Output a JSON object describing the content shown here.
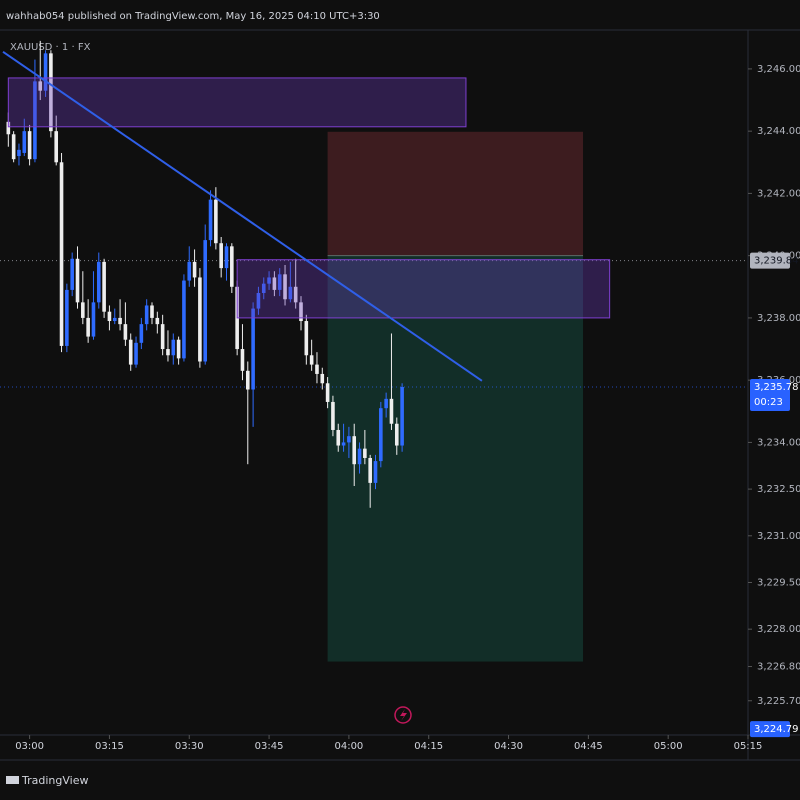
{
  "header": {
    "title": "wahhab054 published on TradingView.com, May 16, 2025 04:10 UTC+3:30",
    "symbol": "XAUUSD · 1 · FX"
  },
  "footer": {
    "brand": "TradingView"
  },
  "chart_data": {
    "type": "candlestick",
    "up_color": "#2f6bff",
    "down_color": "#eeeeee",
    "x": [
      "02:56",
      "02:57",
      "02:58",
      "02:59",
      "03:00",
      "03:01",
      "03:02",
      "03:03",
      "03:04",
      "03:05",
      "03:06",
      "03:07",
      "03:08",
      "03:09",
      "03:10",
      "03:11",
      "03:12",
      "03:13",
      "03:14",
      "03:15",
      "03:16",
      "03:17",
      "03:18",
      "03:19",
      "03:20",
      "03:21",
      "03:22",
      "03:23",
      "03:24",
      "03:25",
      "03:26",
      "03:27",
      "03:28",
      "03:29",
      "03:30",
      "03:31",
      "03:32",
      "03:33",
      "03:34",
      "03:35",
      "03:36",
      "03:37",
      "03:38",
      "03:39",
      "03:40",
      "03:41",
      "03:42",
      "03:43",
      "03:44",
      "03:45",
      "03:46",
      "03:47",
      "03:48",
      "03:49",
      "03:50",
      "03:51",
      "03:52",
      "03:53",
      "03:54",
      "03:55",
      "03:56",
      "03:57",
      "03:58",
      "03:59",
      "04:00",
      "04:01",
      "04:02",
      "04:03",
      "04:04",
      "04:05",
      "04:06",
      "04:07",
      "04:08",
      "04:09",
      "04:10"
    ],
    "open": [
      3244.3,
      3243.9,
      3243.2,
      3243.3,
      3244.0,
      3243.1,
      3245.6,
      3245.3,
      3246.5,
      3244.0,
      3243.0,
      3237.1,
      3238.9,
      3239.9,
      3238.5,
      3238.0,
      3237.4,
      3238.5,
      3239.8,
      3238.2,
      3237.9,
      3238.0,
      3237.8,
      3237.3,
      3236.5,
      3237.2,
      3237.8,
      3238.4,
      3238.0,
      3237.8,
      3237.0,
      3236.8,
      3237.3,
      3236.7,
      3239.2,
      3239.8,
      3239.3,
      3236.6,
      3240.5,
      3241.8,
      3240.4,
      3239.6,
      3240.3,
      3239.0,
      3237.0,
      3236.3,
      3235.7,
      3238.3,
      3238.8,
      3239.1,
      3239.3,
      3238.9,
      3239.4,
      3238.6,
      3239.0,
      3238.5,
      3237.9,
      3236.8,
      3236.5,
      3236.2,
      3235.9,
      3235.3,
      3234.4,
      3233.9,
      3234.0,
      3234.2,
      3233.3,
      3233.8,
      3233.5,
      3232.7,
      3233.4,
      3235.1,
      3235.4,
      3234.6,
      3233.9
    ],
    "high": [
      3244.6,
      3244.0,
      3243.6,
      3244.4,
      3244.2,
      3246.3,
      3246.9,
      3246.6,
      3246.6,
      3244.5,
      3243.3,
      3239.1,
      3240.1,
      3240.3,
      3239.5,
      3238.6,
      3239.5,
      3240.1,
      3239.9,
      3238.4,
      3238.3,
      3238.6,
      3238.5,
      3237.5,
      3237.4,
      3238.0,
      3238.6,
      3238.5,
      3238.2,
      3238.1,
      3237.6,
      3237.5,
      3237.4,
      3239.4,
      3240.3,
      3240.2,
      3239.6,
      3241.0,
      3242.1,
      3242.2,
      3240.6,
      3240.4,
      3240.4,
      3239.2,
      3237.8,
      3236.6,
      3238.5,
      3239.0,
      3239.3,
      3239.5,
      3239.5,
      3239.6,
      3239.7,
      3239.8,
      3239.9,
      3238.7,
      3238.1,
      3237.3,
      3236.9,
      3236.4,
      3236.1,
      3235.5,
      3234.6,
      3234.6,
      3234.5,
      3234.6,
      3234.0,
      3234.4,
      3233.6,
      3233.6,
      3235.3,
      3235.6,
      3237.5,
      3234.8,
      3235.9
    ],
    "low": [
      3243.5,
      3243.0,
      3242.9,
      3243.2,
      3242.9,
      3243.0,
      3245.0,
      3245.1,
      3243.8,
      3242.9,
      3236.9,
      3236.9,
      3238.7,
      3238.3,
      3237.8,
      3237.2,
      3237.3,
      3238.3,
      3238.0,
      3237.6,
      3237.8,
      3237.6,
      3237.1,
      3236.3,
      3236.4,
      3237.0,
      3237.6,
      3237.8,
      3237.5,
      3236.8,
      3236.6,
      3236.5,
      3236.5,
      3236.6,
      3239.0,
      3239.0,
      3236.4,
      3236.5,
      3240.3,
      3240.2,
      3239.3,
      3239.2,
      3238.8,
      3236.8,
      3236.0,
      3233.3,
      3234.5,
      3238.1,
      3238.6,
      3238.9,
      3238.7,
      3238.7,
      3238.4,
      3238.5,
      3238.3,
      3237.6,
      3236.5,
      3236.3,
      3235.9,
      3235.7,
      3235.1,
      3234.2,
      3233.7,
      3233.7,
      3233.5,
      3232.6,
      3233.0,
      3233.3,
      3231.9,
      3232.5,
      3233.2,
      3234.8,
      3234.4,
      3233.6,
      3233.7
    ],
    "close": [
      3243.9,
      3243.1,
      3243.4,
      3244.0,
      3243.1,
      3245.6,
      3245.3,
      3246.5,
      3244.0,
      3243.0,
      3237.1,
      3238.9,
      3239.9,
      3238.5,
      3238.0,
      3237.4,
      3238.5,
      3239.8,
      3238.2,
      3237.9,
      3238.0,
      3237.8,
      3237.3,
      3236.5,
      3237.2,
      3237.8,
      3238.4,
      3238.0,
      3237.8,
      3237.0,
      3236.8,
      3237.3,
      3236.7,
      3239.2,
      3239.8,
      3239.3,
      3236.6,
      3240.5,
      3241.8,
      3240.4,
      3239.6,
      3240.3,
      3239.0,
      3237.0,
      3236.3,
      3235.7,
      3238.3,
      3238.8,
      3239.1,
      3239.3,
      3238.9,
      3239.4,
      3238.6,
      3239.0,
      3238.5,
      3237.9,
      3236.8,
      3236.5,
      3236.2,
      3235.9,
      3235.3,
      3234.4,
      3233.9,
      3234.0,
      3234.2,
      3233.3,
      3233.8,
      3233.5,
      3232.7,
      3233.4,
      3235.1,
      3235.4,
      3234.6,
      3233.9,
      3235.78
    ],
    "xlim": [
      "02:55",
      "05:15"
    ],
    "xticks": [
      "03:00",
      "03:15",
      "03:30",
      "03:45",
      "04:00",
      "04:15",
      "04:30",
      "04:45",
      "05:00",
      "05:15"
    ],
    "ylim": [
      3224.6,
      3247.25
    ],
    "yticks": [
      {
        "value": 3246,
        "label": "3,246.00"
      },
      {
        "value": 3244,
        "label": "3,244.00"
      },
      {
        "value": 3242,
        "label": "3,242.00"
      },
      {
        "value": 3240,
        "label": "3,240.00"
      },
      {
        "value": 3238,
        "label": "3,238.00"
      },
      {
        "value": 3236,
        "label": "3,236.00"
      },
      {
        "value": 3234,
        "label": "3,234.00"
      },
      {
        "value": 3232.5,
        "label": "3,232.50"
      },
      {
        "value": 3231,
        "label": "3,231.00"
      },
      {
        "value": 3229.5,
        "label": "3,229.50"
      },
      {
        "value": 3228,
        "label": "3,228.00"
      },
      {
        "value": 3226.8,
        "label": "3,226.80"
      },
      {
        "value": 3225.7,
        "label": "3,225.70"
      }
    ],
    "price_labels": [
      {
        "value": 3239.84,
        "label": "3,239.84",
        "color": "#b2b5be"
      },
      {
        "value": 3235.78,
        "label": "3,235.78",
        "color": "#2962ff",
        "countdown": "00:23"
      },
      {
        "value": 3224.79,
        "label": "3,224.79",
        "color": "#2962ff"
      }
    ],
    "drawings": {
      "trendline": {
        "x": [
          "02:55",
          "04:25"
        ],
        "y": [
          3246.55,
          3235.98
        ],
        "color": "#2f5fe8"
      },
      "zones": [
        {
          "x": [
            "02:56",
            "04:22"
          ],
          "y": [
            3244.14,
            3245.71
          ]
        },
        {
          "x": [
            "03:39",
            "04:49"
          ],
          "y": [
            3238.0,
            3239.87
          ]
        }
      ],
      "short_position": {
        "x": [
          "03:56",
          "04:44"
        ],
        "stop": 3243.98,
        "entry": 3240.0,
        "target": 3226.96
      }
    }
  }
}
